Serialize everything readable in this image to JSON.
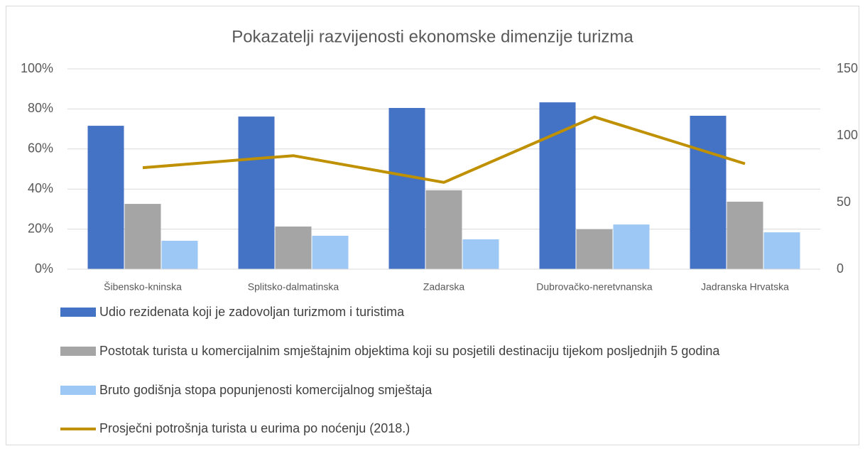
{
  "chart_data": {
    "type": "bar",
    "title": "Pokazatelji razvijenosti ekonomske dimenzije turizma",
    "categories": [
      "Šibensko-kninska",
      "Splitsko-dalmatinska",
      "Zadarska",
      "Dubrovačko-neretvnanska",
      "Jadranska Hrvatska"
    ],
    "series": [
      {
        "name": "Udio rezidenata koji je zadovoljan turizmom i turistima",
        "color": "#4472c4",
        "values": [
          71.6,
          76.2,
          80.5,
          83.3,
          76.6
        ]
      },
      {
        "name": "Postotak turista u komercijalnim smještajnim objektima koji su posjetili destinaciju tijekom posljednjih 5 godina",
        "color": "#a5a5a5",
        "values": [
          32.6,
          21.3,
          39.4,
          19.9,
          33.7
        ]
      },
      {
        "name": "Bruto godišnja stopa popunjenosti komercijalnog smještaja",
        "color": "#9dc8f5",
        "values": [
          14.2,
          16.7,
          14.9,
          22.3,
          18.4
        ]
      },
      {
        "name": "Prosječni potrošnja turista u eurima po noćenju (2018.)",
        "color": "#bf9000",
        "type": "line",
        "axis": "y2",
        "values": [
          76,
          85,
          65,
          114,
          79
        ]
      }
    ],
    "ylim": [
      0,
      100
    ],
    "yticks": [
      {
        "value": 0,
        "label": "0%"
      },
      {
        "value": 20,
        "label": "20%"
      },
      {
        "value": 40,
        "label": "40%"
      },
      {
        "value": 60,
        "label": "60%"
      },
      {
        "value": 80,
        "label": "80%"
      },
      {
        "value": 100,
        "label": "100%"
      }
    ],
    "y2lim": [
      0,
      150
    ],
    "y2ticks": [
      0,
      50,
      100,
      150
    ],
    "grid": true,
    "legend": "bottom"
  }
}
